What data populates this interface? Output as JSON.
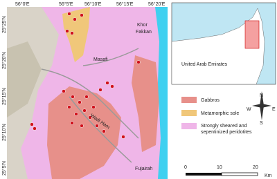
{
  "map": {
    "longitudes": [
      "56°0'E",
      "56°5'E",
      "56°10'E",
      "56°15'E",
      "56°20'E"
    ],
    "latitudes": [
      "25°25'N",
      "25°20'N",
      "25°15'N",
      "25°10'N",
      "25°5'N"
    ],
    "places": {
      "khor": "Khor",
      "fakkan": "Fakkan",
      "masafi": "Masafi",
      "wadi": "Wadi Ham",
      "fujairah": "Fujairah"
    },
    "inset_label": "United Arab Emirates",
    "legend": [
      "Gabbros",
      "Metamorphic sole",
      "Strongly sheared and",
      "sepentinized peridotites"
    ],
    "compass": {
      "n": "N",
      "s": "S",
      "e": "E",
      "w": "W"
    },
    "scale": {
      "ticks": [
        "0",
        "10",
        "20"
      ],
      "unit": "Km"
    }
  }
}
